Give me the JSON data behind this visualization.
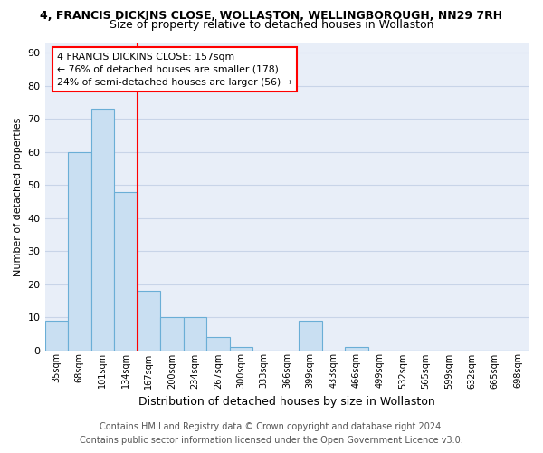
{
  "title1": "4, FRANCIS DICKINS CLOSE, WOLLASTON, WELLINGBOROUGH, NN29 7RH",
  "title2": "Size of property relative to detached houses in Wollaston",
  "xlabel": "Distribution of detached houses by size in Wollaston",
  "ylabel": "Number of detached properties",
  "footer1": "Contains HM Land Registry data © Crown copyright and database right 2024.",
  "footer2": "Contains public sector information licensed under the Open Government Licence v3.0.",
  "annotation_line1": "4 FRANCIS DICKINS CLOSE: 157sqm",
  "annotation_line2": "← 76% of detached houses are smaller (178)",
  "annotation_line3": "24% of semi-detached houses are larger (56) →",
  "bar_color": "#c9dff2",
  "bar_edge_color": "#6aaed6",
  "vline_color": "red",
  "annotation_box_edgecolor": "red",
  "categories": [
    "35sqm",
    "68sqm",
    "101sqm",
    "134sqm",
    "167sqm",
    "200sqm",
    "234sqm",
    "267sqm",
    "300sqm",
    "333sqm",
    "366sqm",
    "399sqm",
    "433sqm",
    "466sqm",
    "499sqm",
    "532sqm",
    "565sqm",
    "599sqm",
    "632sqm",
    "665sqm",
    "698sqm"
  ],
  "values": [
    9,
    60,
    73,
    48,
    18,
    10,
    10,
    4,
    1,
    0,
    0,
    9,
    0,
    1,
    0,
    0,
    0,
    0,
    0,
    0,
    0
  ],
  "ylim": [
    0,
    93
  ],
  "yticks": [
    0,
    10,
    20,
    30,
    40,
    50,
    60,
    70,
    80,
    90
  ],
  "vline_x": 3.5,
  "grid_color": "#c8d4e8",
  "background_color": "#e8eef8",
  "title1_fontsize": 9,
  "title2_fontsize": 9,
  "footer_fontsize": 7,
  "ylabel_fontsize": 8,
  "xlabel_fontsize": 9,
  "ytick_fontsize": 8,
  "xtick_fontsize": 7
}
